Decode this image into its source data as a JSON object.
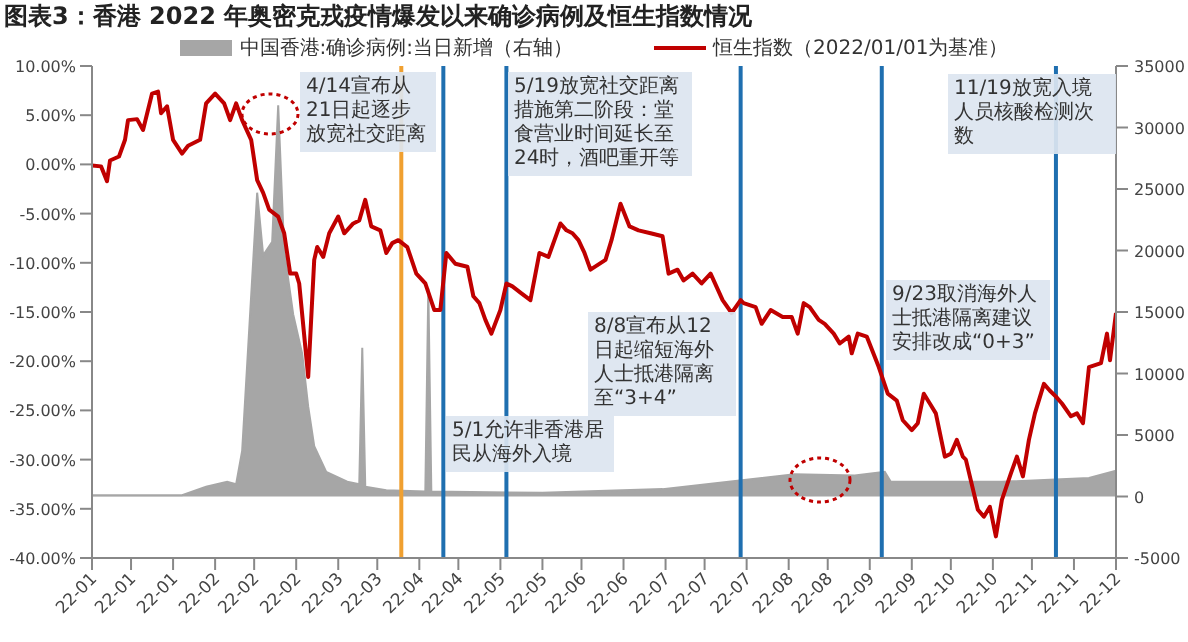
{
  "chart_data": {
    "type": "line",
    "title": "图表3：香港 2022 年奥密克戎疫情爆发以来确诊病例及恒生指数情况",
    "legend": "top",
    "xlim": [
      "2022-01-01",
      "2022-12-08"
    ],
    "xticks": [
      {
        "value": "2022-01-01",
        "label": "22-01"
      },
      {
        "value": "2022-01-14",
        "label": "22-01"
      },
      {
        "value": "2022-01-28",
        "label": "22-01"
      },
      {
        "value": "2022-02-11",
        "label": "22-02"
      },
      {
        "value": "2022-02-24",
        "label": "22-02"
      },
      {
        "value": "2022-03-10",
        "label": "22-02"
      },
      {
        "value": "2022-03-24",
        "label": "22-03"
      },
      {
        "value": "2022-04-06",
        "label": "22-03"
      },
      {
        "value": "2022-04-20",
        "label": "22-04"
      },
      {
        "value": "2022-05-03",
        "label": "22-04"
      },
      {
        "value": "2022-05-17",
        "label": "22-05"
      },
      {
        "value": "2022-05-31",
        "label": "22-05"
      },
      {
        "value": "2022-06-13",
        "label": "22-06"
      },
      {
        "value": "2022-06-27",
        "label": "22-06"
      },
      {
        "value": "2022-07-11",
        "label": "22-07"
      },
      {
        "value": "2022-07-24",
        "label": "22-07"
      },
      {
        "value": "2022-08-07",
        "label": "22-07"
      },
      {
        "value": "2022-08-21",
        "label": "22-08"
      },
      {
        "value": "2022-09-03",
        "label": "22-08"
      },
      {
        "value": "2022-09-17",
        "label": "22-09"
      },
      {
        "value": "2022-10-01",
        "label": "22-09"
      },
      {
        "value": "2022-10-14",
        "label": "22-10"
      },
      {
        "value": "2022-10-28",
        "label": "22-10"
      },
      {
        "value": "2022-11-10",
        "label": "22-11"
      },
      {
        "value": "2022-11-24",
        "label": "22-11"
      },
      {
        "value": "2022-12-08",
        "label": "22-12"
      }
    ],
    "ylim": [
      -40,
      10
    ],
    "yticks": [
      {
        "value": 10,
        "label": "10.00%"
      },
      {
        "value": 5,
        "label": "5.00%"
      },
      {
        "value": 0,
        "label": "0.00%"
      },
      {
        "value": -5,
        "label": "-5.00%"
      },
      {
        "value": -10,
        "label": "-10.00%"
      },
      {
        "value": -15,
        "label": "-15.00%"
      },
      {
        "value": -20,
        "label": "-20.00%"
      },
      {
        "value": -25,
        "label": "-25.00%"
      },
      {
        "value": -30,
        "label": "-30.00%"
      },
      {
        "value": -35,
        "label": "-35.00%"
      },
      {
        "value": -40,
        "label": "-40.00%"
      }
    ],
    "y2lim": [
      -5000,
      35000
    ],
    "y2ticks": [
      35000,
      30000,
      25000,
      20000,
      15000,
      10000,
      5000,
      0,
      -5000
    ],
    "series": [
      {
        "name": "中国香港:确诊病例:当日新增（右轴）",
        "type": "area",
        "axis": "y2",
        "color": "#a6a6a6",
        "x": [
          "2022-01-01",
          "2022-01-31",
          "2022-02-08",
          "2022-02-15",
          "2022-02-18",
          "2022-02-20",
          "2022-02-25",
          "2022-02-27",
          "2022-03-02",
          "2022-03-04",
          "2022-03-06",
          "2022-03-09",
          "2022-03-12",
          "2022-03-14",
          "2022-03-16",
          "2022-03-20",
          "2022-03-27",
          "2022-03-31",
          "2022-04-01",
          "2022-04-02",
          "2022-04-09",
          "2022-04-22",
          "2022-04-23",
          "2022-04-24",
          "2022-05-31",
          "2022-07-10",
          "2022-08-01",
          "2022-08-23",
          "2022-09-12",
          "2022-09-22",
          "2022-09-24",
          "2022-10-31",
          "2022-11-29",
          "2022-12-08"
        ],
        "values": [
          100,
          100,
          800,
          1200,
          1000,
          3700,
          24700,
          19600,
          20700,
          31800,
          20000,
          14800,
          11600,
          7300,
          4100,
          2000,
          1200,
          1000,
          12100,
          800,
          500,
          400,
          16900,
          400,
          300,
          600,
          1200,
          1800,
          1700,
          2000,
          1200,
          1200,
          1500,
          2100
        ]
      },
      {
        "name": "恒生指数（2022/01/01为基准）",
        "axis": "y",
        "color": "#c00000",
        "x": [
          "2022-01-01",
          "2022-01-04",
          "2022-01-06",
          "2022-01-07",
          "2022-01-10",
          "2022-01-12",
          "2022-01-13",
          "2022-01-16",
          "2022-01-18",
          "2022-01-21",
          "2022-01-23",
          "2022-01-24",
          "2022-01-26",
          "2022-01-28",
          "2022-01-31",
          "2022-02-02",
          "2022-02-06",
          "2022-02-08",
          "2022-02-11",
          "2022-02-14",
          "2022-02-16",
          "2022-02-18",
          "2022-02-20",
          "2022-02-23",
          "2022-02-25",
          "2022-02-27",
          "2022-03-01",
          "2022-03-04",
          "2022-03-06",
          "2022-03-08",
          "2022-03-10",
          "2022-03-11",
          "2022-03-14",
          "2022-03-16",
          "2022-03-17",
          "2022-03-19",
          "2022-03-21",
          "2022-03-24",
          "2022-03-26",
          "2022-03-29",
          "2022-03-31",
          "2022-04-02",
          "2022-04-04",
          "2022-04-07",
          "2022-04-09",
          "2022-04-11",
          "2022-04-13",
          "2022-04-16",
          "2022-04-19",
          "2022-04-22",
          "2022-04-25",
          "2022-04-27",
          "2022-04-29",
          "2022-05-02",
          "2022-05-06",
          "2022-05-08",
          "2022-05-10",
          "2022-05-12",
          "2022-05-14",
          "2022-05-17",
          "2022-05-19",
          "2022-05-21",
          "2022-05-24",
          "2022-05-27",
          "2022-05-30",
          "2022-06-02",
          "2022-06-06",
          "2022-06-08",
          "2022-06-10",
          "2022-06-12",
          "2022-06-14",
          "2022-06-16",
          "2022-06-21",
          "2022-06-23",
          "2022-06-26",
          "2022-06-29",
          "2022-07-02",
          "2022-07-06",
          "2022-07-10",
          "2022-07-12",
          "2022-07-15",
          "2022-07-17",
          "2022-07-20",
          "2022-07-23",
          "2022-07-26",
          "2022-07-30",
          "2022-08-02",
          "2022-08-05",
          "2022-08-06",
          "2022-08-10",
          "2022-08-12",
          "2022-08-15",
          "2022-08-19",
          "2022-08-22",
          "2022-08-24",
          "2022-08-26",
          "2022-08-28",
          "2022-08-31",
          "2022-09-02",
          "2022-09-05",
          "2022-09-07",
          "2022-09-10",
          "2022-09-11",
          "2022-09-13",
          "2022-09-16",
          "2022-09-20",
          "2022-09-23",
          "2022-09-26",
          "2022-09-28",
          "2022-10-01",
          "2022-10-03",
          "2022-10-05",
          "2022-10-07",
          "2022-10-09",
          "2022-10-12",
          "2022-10-14",
          "2022-10-16",
          "2022-10-18",
          "2022-10-19",
          "2022-10-23",
          "2022-10-25",
          "2022-10-27",
          "2022-10-29",
          "2022-10-31",
          "2022-11-03",
          "2022-11-05",
          "2022-11-07",
          "2022-11-09",
          "2022-11-11",
          "2022-11-14",
          "2022-11-16",
          "2022-11-18",
          "2022-11-20",
          "2022-11-23",
          "2022-11-25",
          "2022-11-27",
          "2022-11-29",
          "2022-12-03",
          "2022-12-05",
          "2022-12-06",
          "2022-12-08"
        ],
        "values": [
          -0.1,
          -0.2,
          -1.7,
          0.4,
          0.8,
          2.5,
          4.5,
          4.6,
          3.5,
          7.2,
          7.4,
          5.2,
          5.9,
          2.5,
          1.1,
          1.9,
          2.5,
          6.2,
          7.2,
          6.2,
          4.5,
          6.2,
          4.5,
          2.5,
          -1.6,
          -2.9,
          -4.6,
          -5.3,
          -7.0,
          -11.1,
          -11.1,
          -12.1,
          -21.6,
          -9.7,
          -8.4,
          -9.4,
          -7.0,
          -5.3,
          -7.0,
          -6.0,
          -5.7,
          -3.6,
          -6.3,
          -6.7,
          -9.0,
          -8.0,
          -7.7,
          -8.4,
          -11.1,
          -12.1,
          -14.8,
          -14.8,
          -9.0,
          -10.1,
          -10.4,
          -13.4,
          -14.1,
          -15.8,
          -17.2,
          -14.8,
          -12.1,
          -12.4,
          -13.1,
          -13.8,
          -9.0,
          -9.4,
          -6.0,
          -6.7,
          -7.0,
          -7.7,
          -9.0,
          -10.7,
          -9.7,
          -7.7,
          -4.0,
          -6.3,
          -6.7,
          -7.0,
          -7.3,
          -11.1,
          -10.7,
          -11.8,
          -11.1,
          -12.1,
          -11.1,
          -13.8,
          -15.1,
          -13.8,
          -14.1,
          -14.5,
          -16.2,
          -14.8,
          -15.5,
          -15.5,
          -17.2,
          -14.1,
          -14.5,
          -15.8,
          -16.2,
          -17.2,
          -18.2,
          -17.5,
          -19.2,
          -17.2,
          -17.5,
          -20.6,
          -23.3,
          -24.0,
          -26.0,
          -27.0,
          -26.3,
          -23.3,
          -24.3,
          -25.3,
          -29.7,
          -29.4,
          -28.0,
          -29.7,
          -30.0,
          -35.1,
          -35.8,
          -34.8,
          -37.8,
          -34.1,
          -31.4,
          -29.7,
          -31.7,
          -28.0,
          -25.3,
          -22.3,
          -23.0,
          -23.6,
          -24.3,
          -25.6,
          -25.3,
          -26.3,
          -20.6,
          -20.2,
          -17.2,
          -19.9,
          -15.1
        ]
      }
    ],
    "ref_lines": [
      {
        "axis": "x",
        "value": "2022-04-14",
        "color": "#f0a030",
        "label": "4/14宣布从21日起逐步放宽社交距离"
      },
      {
        "axis": "x",
        "value": "2022-04-28",
        "color": "#1f6fb0",
        "label": "5/1允许非香港居民从海外入境"
      },
      {
        "axis": "x",
        "value": "2022-05-19",
        "color": "#1f6fb0",
        "label": "5/19放宽社交距离措施第二阶段：堂食营业时间延长至24时，酒吧重开等"
      },
      {
        "axis": "x",
        "value": "2022-08-05",
        "color": "#1f6fb0",
        "label": "8/8宣布从12日起缩短海外人士抵港隔离至“3+4”"
      },
      {
        "axis": "x",
        "value": "2022-09-21",
        "color": "#1f6fb0",
        "label": "9/23取消海外人士抵港隔离建议安排改成“0+3”"
      },
      {
        "axis": "x",
        "value": "2022-11-18",
        "color": "#1f6fb0",
        "label": "11/19放宽入境人员核酸检测次数"
      }
    ]
  }
}
